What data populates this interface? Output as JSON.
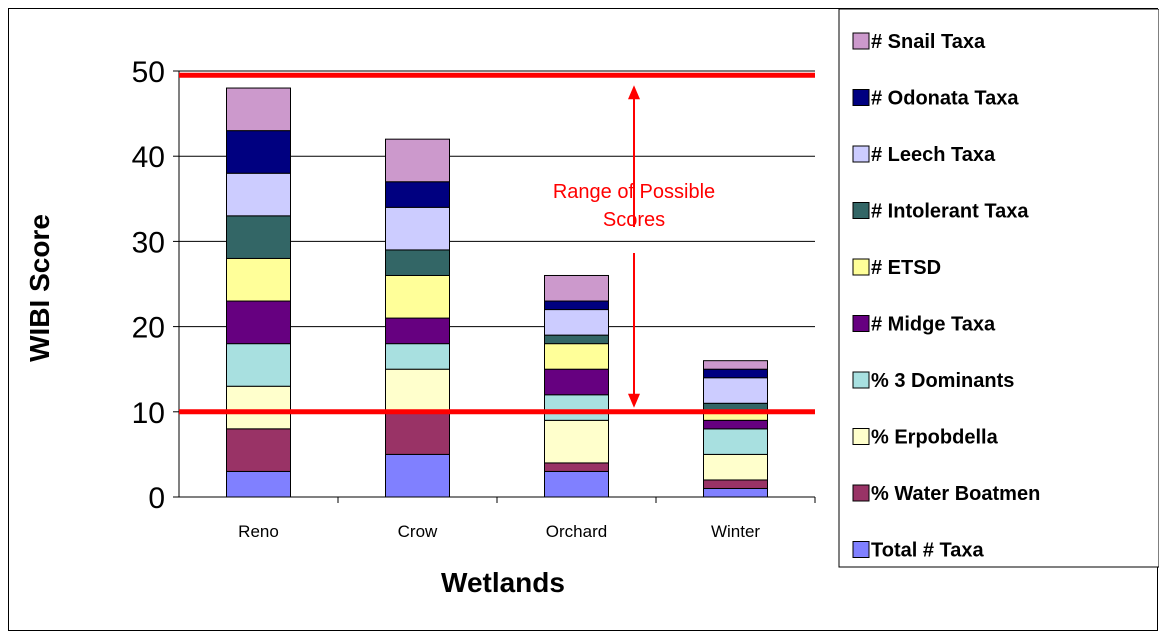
{
  "chart_data": {
    "type": "bar",
    "stacked": true,
    "categories": [
      "Reno",
      "Crow",
      "Orchard",
      "Winter"
    ],
    "xlabel": "Wetlands",
    "ylabel": "WIBI Score",
    "ylim": [
      0,
      50
    ],
    "yticks": [
      0,
      10,
      20,
      30,
      40,
      50
    ],
    "grid": true,
    "legend_position": "right",
    "series": [
      {
        "name": "Total # Taxa",
        "color": "#8080ff",
        "values": [
          3,
          5,
          3,
          1
        ]
      },
      {
        "name": "% Water Boatmen",
        "color": "#993366",
        "values": [
          5,
          5,
          1,
          1
        ]
      },
      {
        "name": "% Erpobdella",
        "color": "#ffffcc",
        "values": [
          5,
          5,
          5,
          3
        ]
      },
      {
        "name": "% 3 Dominants",
        "color": "#a8e0e0",
        "values": [
          5,
          3,
          3,
          3
        ]
      },
      {
        "name": "# Midge Taxa",
        "color": "#660080",
        "values": [
          5,
          3,
          3,
          1
        ]
      },
      {
        "name": "# ETSD",
        "color": "#ffff99",
        "values": [
          5,
          5,
          3,
          1
        ]
      },
      {
        "name": "# Intolerant Taxa",
        "color": "#336666",
        "values": [
          5,
          3,
          1,
          1
        ]
      },
      {
        "name": "# Leech Taxa",
        "color": "#ccccff",
        "values": [
          5,
          5,
          3,
          3
        ]
      },
      {
        "name": "# Odonata Taxa",
        "color": "#000080",
        "values": [
          5,
          3,
          1,
          1
        ]
      },
      {
        "name": "# Snail Taxa",
        "color": "#cc99cc",
        "values": [
          5,
          5,
          3,
          1
        ]
      }
    ],
    "reference_lines": [
      {
        "value": 49.5,
        "color": "#ff0000"
      },
      {
        "value": 10,
        "color": "#ff0000"
      }
    ],
    "annotation": {
      "lines": [
        "Range of Possible",
        "Scores"
      ],
      "color": "#ff0000"
    }
  }
}
